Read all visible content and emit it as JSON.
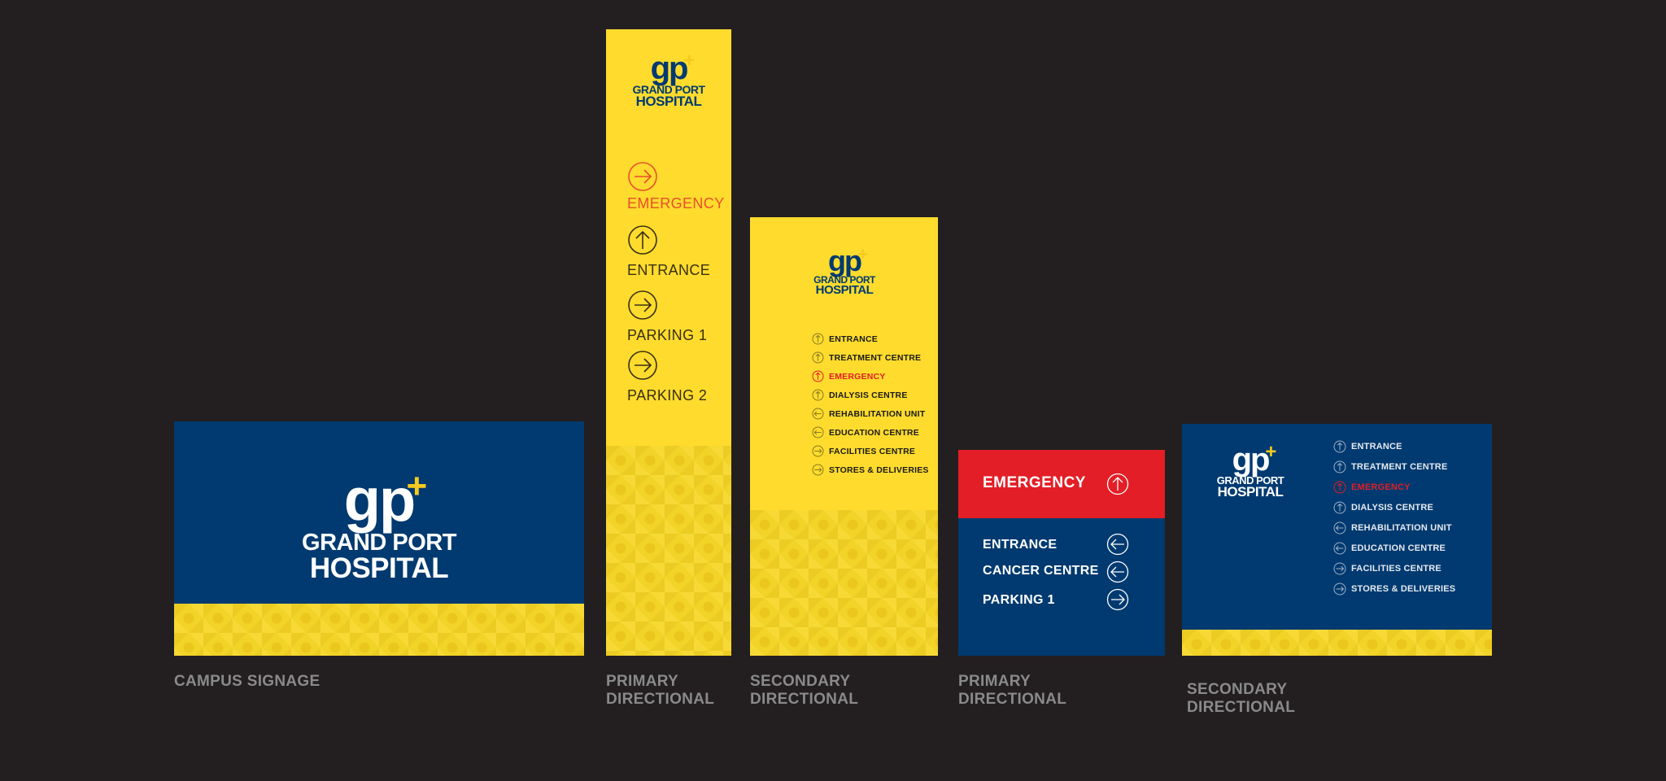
{
  "brand": {
    "name_line1": "GRAND PORT",
    "name_line2": "HOSPITAL",
    "mark": "gp",
    "plus": "+",
    "colors": {
      "navy": "#003a70",
      "yellow": "#fedb2d",
      "red": "#e31e26",
      "background": "#231f20"
    }
  },
  "campus_sign": {
    "caption": "CAMPUS SIGNAGE"
  },
  "primary_tall": {
    "caption_line1": "PRIMARY",
    "caption_line2": "DIRECTIONAL",
    "items": [
      {
        "label": "EMERGENCY",
        "icon": "arrow-right-icon",
        "color": "#e8502a"
      },
      {
        "label": "ENTRANCE",
        "icon": "arrow-up-icon",
        "color": "#3a3010"
      },
      {
        "label": "PARKING 1",
        "icon": "arrow-right-icon",
        "color": "#3a3010"
      },
      {
        "label": "PARKING 2",
        "icon": "arrow-right-icon",
        "color": "#3a3010"
      }
    ]
  },
  "secondary_yellow": {
    "caption_line1": "SECONDARY",
    "caption_line2": "DIRECTIONAL",
    "items": [
      {
        "label": "ENTRANCE",
        "icon": "arrow-up-icon",
        "color": "#1a1a1a"
      },
      {
        "label": "TREATMENT CENTRE",
        "icon": "arrow-up-icon",
        "color": "#1a1a1a"
      },
      {
        "label": "EMERGENCY",
        "icon": "arrow-up-icon",
        "color": "#e31e26"
      },
      {
        "label": "DIALYSIS CENTRE",
        "icon": "arrow-up-icon",
        "color": "#1a1a1a"
      },
      {
        "label": "REHABILITATION UNIT",
        "icon": "arrow-left-icon",
        "color": "#1a1a1a"
      },
      {
        "label": "EDUCATION CENTRE",
        "icon": "arrow-left-icon",
        "color": "#1a1a1a"
      },
      {
        "label": "FACILITIES CENTRE",
        "icon": "arrow-right-icon",
        "color": "#1a1a1a"
      },
      {
        "label": "STORES & DELIVERIES",
        "icon": "arrow-right-icon",
        "color": "#1a1a1a"
      }
    ]
  },
  "primary_red": {
    "caption_line1": "PRIMARY",
    "caption_line2": "DIRECTIONAL",
    "header": {
      "label": "EMERGENCY",
      "icon": "arrow-up-icon"
    },
    "items": [
      {
        "label": "ENTRANCE",
        "icon": "arrow-left-icon"
      },
      {
        "label": "CANCER CENTRE",
        "icon": "arrow-left-icon"
      },
      {
        "label": "PARKING 1",
        "icon": "arrow-right-icon"
      }
    ]
  },
  "secondary_navy": {
    "caption_line1": "SECONDARY",
    "caption_line2": "DIRECTIONAL",
    "items": [
      {
        "label": "ENTRANCE",
        "icon": "arrow-up-icon",
        "color": "#e6e9ef"
      },
      {
        "label": "TREATMENT CENTRE",
        "icon": "arrow-up-icon",
        "color": "#e6e9ef"
      },
      {
        "label": "EMERGENCY",
        "icon": "arrow-up-icon",
        "color": "#e31e26"
      },
      {
        "label": "DIALYSIS CENTRE",
        "icon": "arrow-up-icon",
        "color": "#e6e9ef"
      },
      {
        "label": "REHABILITATION UNIT",
        "icon": "arrow-left-icon",
        "color": "#e6e9ef"
      },
      {
        "label": "EDUCATION CENTRE",
        "icon": "arrow-left-icon",
        "color": "#e6e9ef"
      },
      {
        "label": "FACILITIES CENTRE",
        "icon": "arrow-right-icon",
        "color": "#e6e9ef"
      },
      {
        "label": "STORES & DELIVERIES",
        "icon": "arrow-right-icon",
        "color": "#e6e9ef"
      }
    ]
  }
}
